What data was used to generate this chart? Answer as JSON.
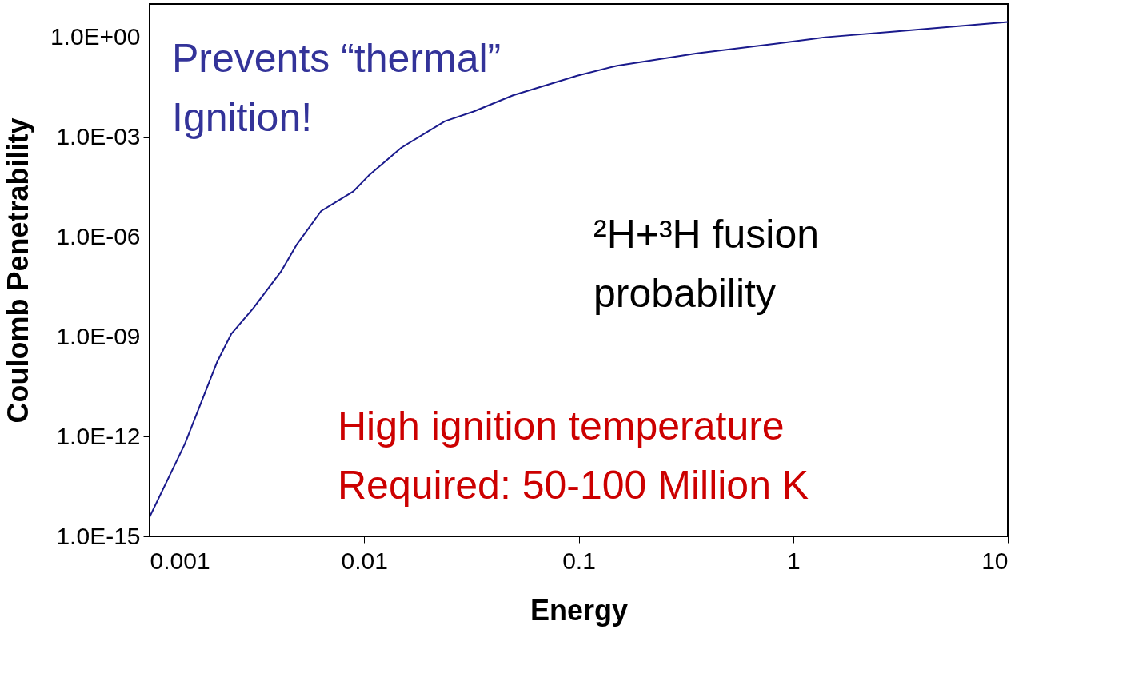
{
  "chart_data": {
    "type": "line",
    "xlabel": "Energy",
    "ylabel": "Coulomb Penetrability",
    "log": "xy",
    "grid": false,
    "marker": "none",
    "line_style": "solid",
    "xlim": [
      0.001,
      10
    ],
    "xticks": [
      0.001,
      0.01,
      0.1,
      1,
      10
    ],
    "ylim": [
      1e-15,
      10
    ],
    "yticks": [
      {
        "value": 1e-15,
        "label": "1.0E-15"
      },
      {
        "value": 1e-12,
        "label": "1.0E-12"
      },
      {
        "value": 1e-09,
        "label": "1.0E-09"
      },
      {
        "value": 1e-06,
        "label": "1.0E-06"
      },
      {
        "value": 0.001,
        "label": "1.0E-03"
      },
      {
        "value": 1,
        "label": "1.0E+00"
      }
    ],
    "x": [
      0.001,
      0.00146,
      0.00206,
      0.0024,
      0.00303,
      0.00409,
      0.00486,
      0.0063,
      0.00888,
      0.0105,
      0.0149,
      0.0238,
      0.0322,
      0.0494,
      0.0984,
      0.151,
      0.356,
      0.84,
      1.41,
      3.05,
      10
    ],
    "series": [
      {
        "color": "#1a1a8c",
        "values": [
          3.8e-15,
          6e-13,
          1.7e-10,
          1.2e-09,
          7e-09,
          9e-08,
          6e-07,
          6e-06,
          2.3e-05,
          7e-05,
          0.00048,
          0.003,
          0.0058,
          0.018,
          0.07,
          0.14,
          0.33,
          0.65,
          1.0,
          1.5,
          2.9
        ]
      }
    ],
    "annotations": [
      "Prevents “thermal”\nIgnition!",
      "²H+³H fusion\nprobability",
      "High ignition temperature\nRequired: 50-100 Million K"
    ]
  }
}
